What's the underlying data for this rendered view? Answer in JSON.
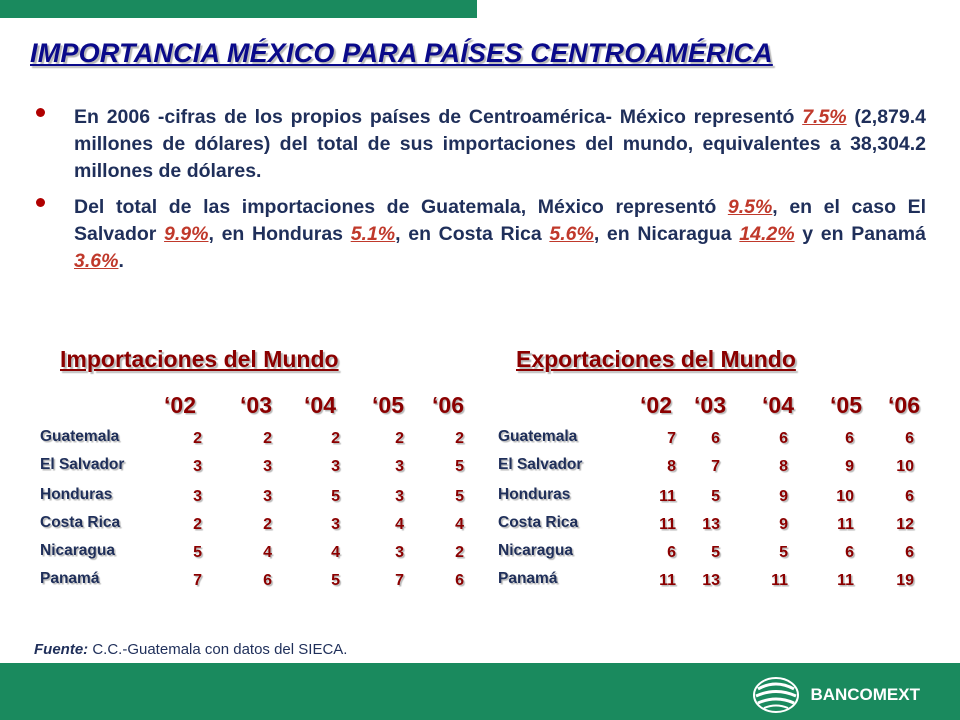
{
  "title": "IMPORTANCIA MÉXICO PARA PAÍSES CENTROAMÉRICA",
  "bullet1": {
    "t1": "En 2006 -cifras de los propios países de Centroamérica- México representó ",
    "h1": "7.5%",
    "t2": " (2,879.4 millones de dólares) del total de sus importaciones del mundo, equivalentes a 38,304.2 millones de dólares."
  },
  "bullet2": {
    "t1": "Del total de las importaciones de Guatemala, México representó ",
    "h1": "9.5%",
    "t2": ", en el caso El Salvador ",
    "h2": "9.9%",
    "t3": ", en Honduras ",
    "h3": "5.1%",
    "t4": ", en Costa Rica ",
    "h4": "5.6%",
    "t5": ", en  Nicaragua ",
    "h5": "14.2%",
    "t6": " y en Panamá ",
    "h6": "3.6%",
    "t7": "."
  },
  "imports": {
    "title": "Importaciones del Mundo",
    "years": [
      "‘02",
      "‘03",
      "‘04",
      "‘05",
      "‘06"
    ],
    "rows": [
      {
        "country": "Guatemala",
        "values": [
          "2",
          "2",
          "2",
          "2",
          "2"
        ]
      },
      {
        "country": "El Salvador",
        "values": [
          "3",
          "3",
          "3",
          "3",
          "5"
        ]
      },
      {
        "country": "Honduras",
        "values": [
          "3",
          "3",
          "5",
          "3",
          "5"
        ]
      },
      {
        "country": "Costa Rica",
        "values": [
          "2",
          "2",
          "3",
          "4",
          "4"
        ]
      },
      {
        "country": "Nicaragua",
        "values": [
          "5",
          "4",
          "4",
          "3",
          "2"
        ]
      },
      {
        "country": "Panamá",
        "values": [
          "7",
          "6",
          "5",
          "7",
          "6"
        ]
      }
    ]
  },
  "exports": {
    "title": "Exportaciones del Mundo",
    "years": [
      "‘02",
      "‘03",
      "‘04",
      "‘05",
      "‘06"
    ],
    "rows": [
      {
        "country": "Guatemala",
        "values": [
          "7",
          "6",
          "6",
          "6",
          "6"
        ]
      },
      {
        "country": "El Salvador",
        "values": [
          "8",
          "7",
          "8",
          "9",
          "10"
        ]
      },
      {
        "country": "Honduras",
        "values": [
          "11",
          "5",
          "9",
          "10",
          "6"
        ]
      },
      {
        "country": "Costa Rica",
        "values": [
          "11",
          "13",
          "9",
          "11",
          "12"
        ]
      },
      {
        "country": "Nicaragua",
        "values": [
          "6",
          "5",
          "5",
          "6",
          "6"
        ]
      },
      {
        "country": "Panamá",
        "values": [
          "11",
          "13",
          "11",
          "11",
          "19"
        ]
      }
    ]
  },
  "footer": {
    "source_label": "Fuente:",
    "source_text": " C.C.-Guatemala con datos del SIECA.",
    "brand": "BANCOMEXT",
    "logo_icon": "globe-logo-icon"
  },
  "colors": {
    "green": "#1a8a5e",
    "title_blue": "#0a0a8a",
    "dark_red": "#8b0000",
    "highlight": "#c0392b"
  }
}
